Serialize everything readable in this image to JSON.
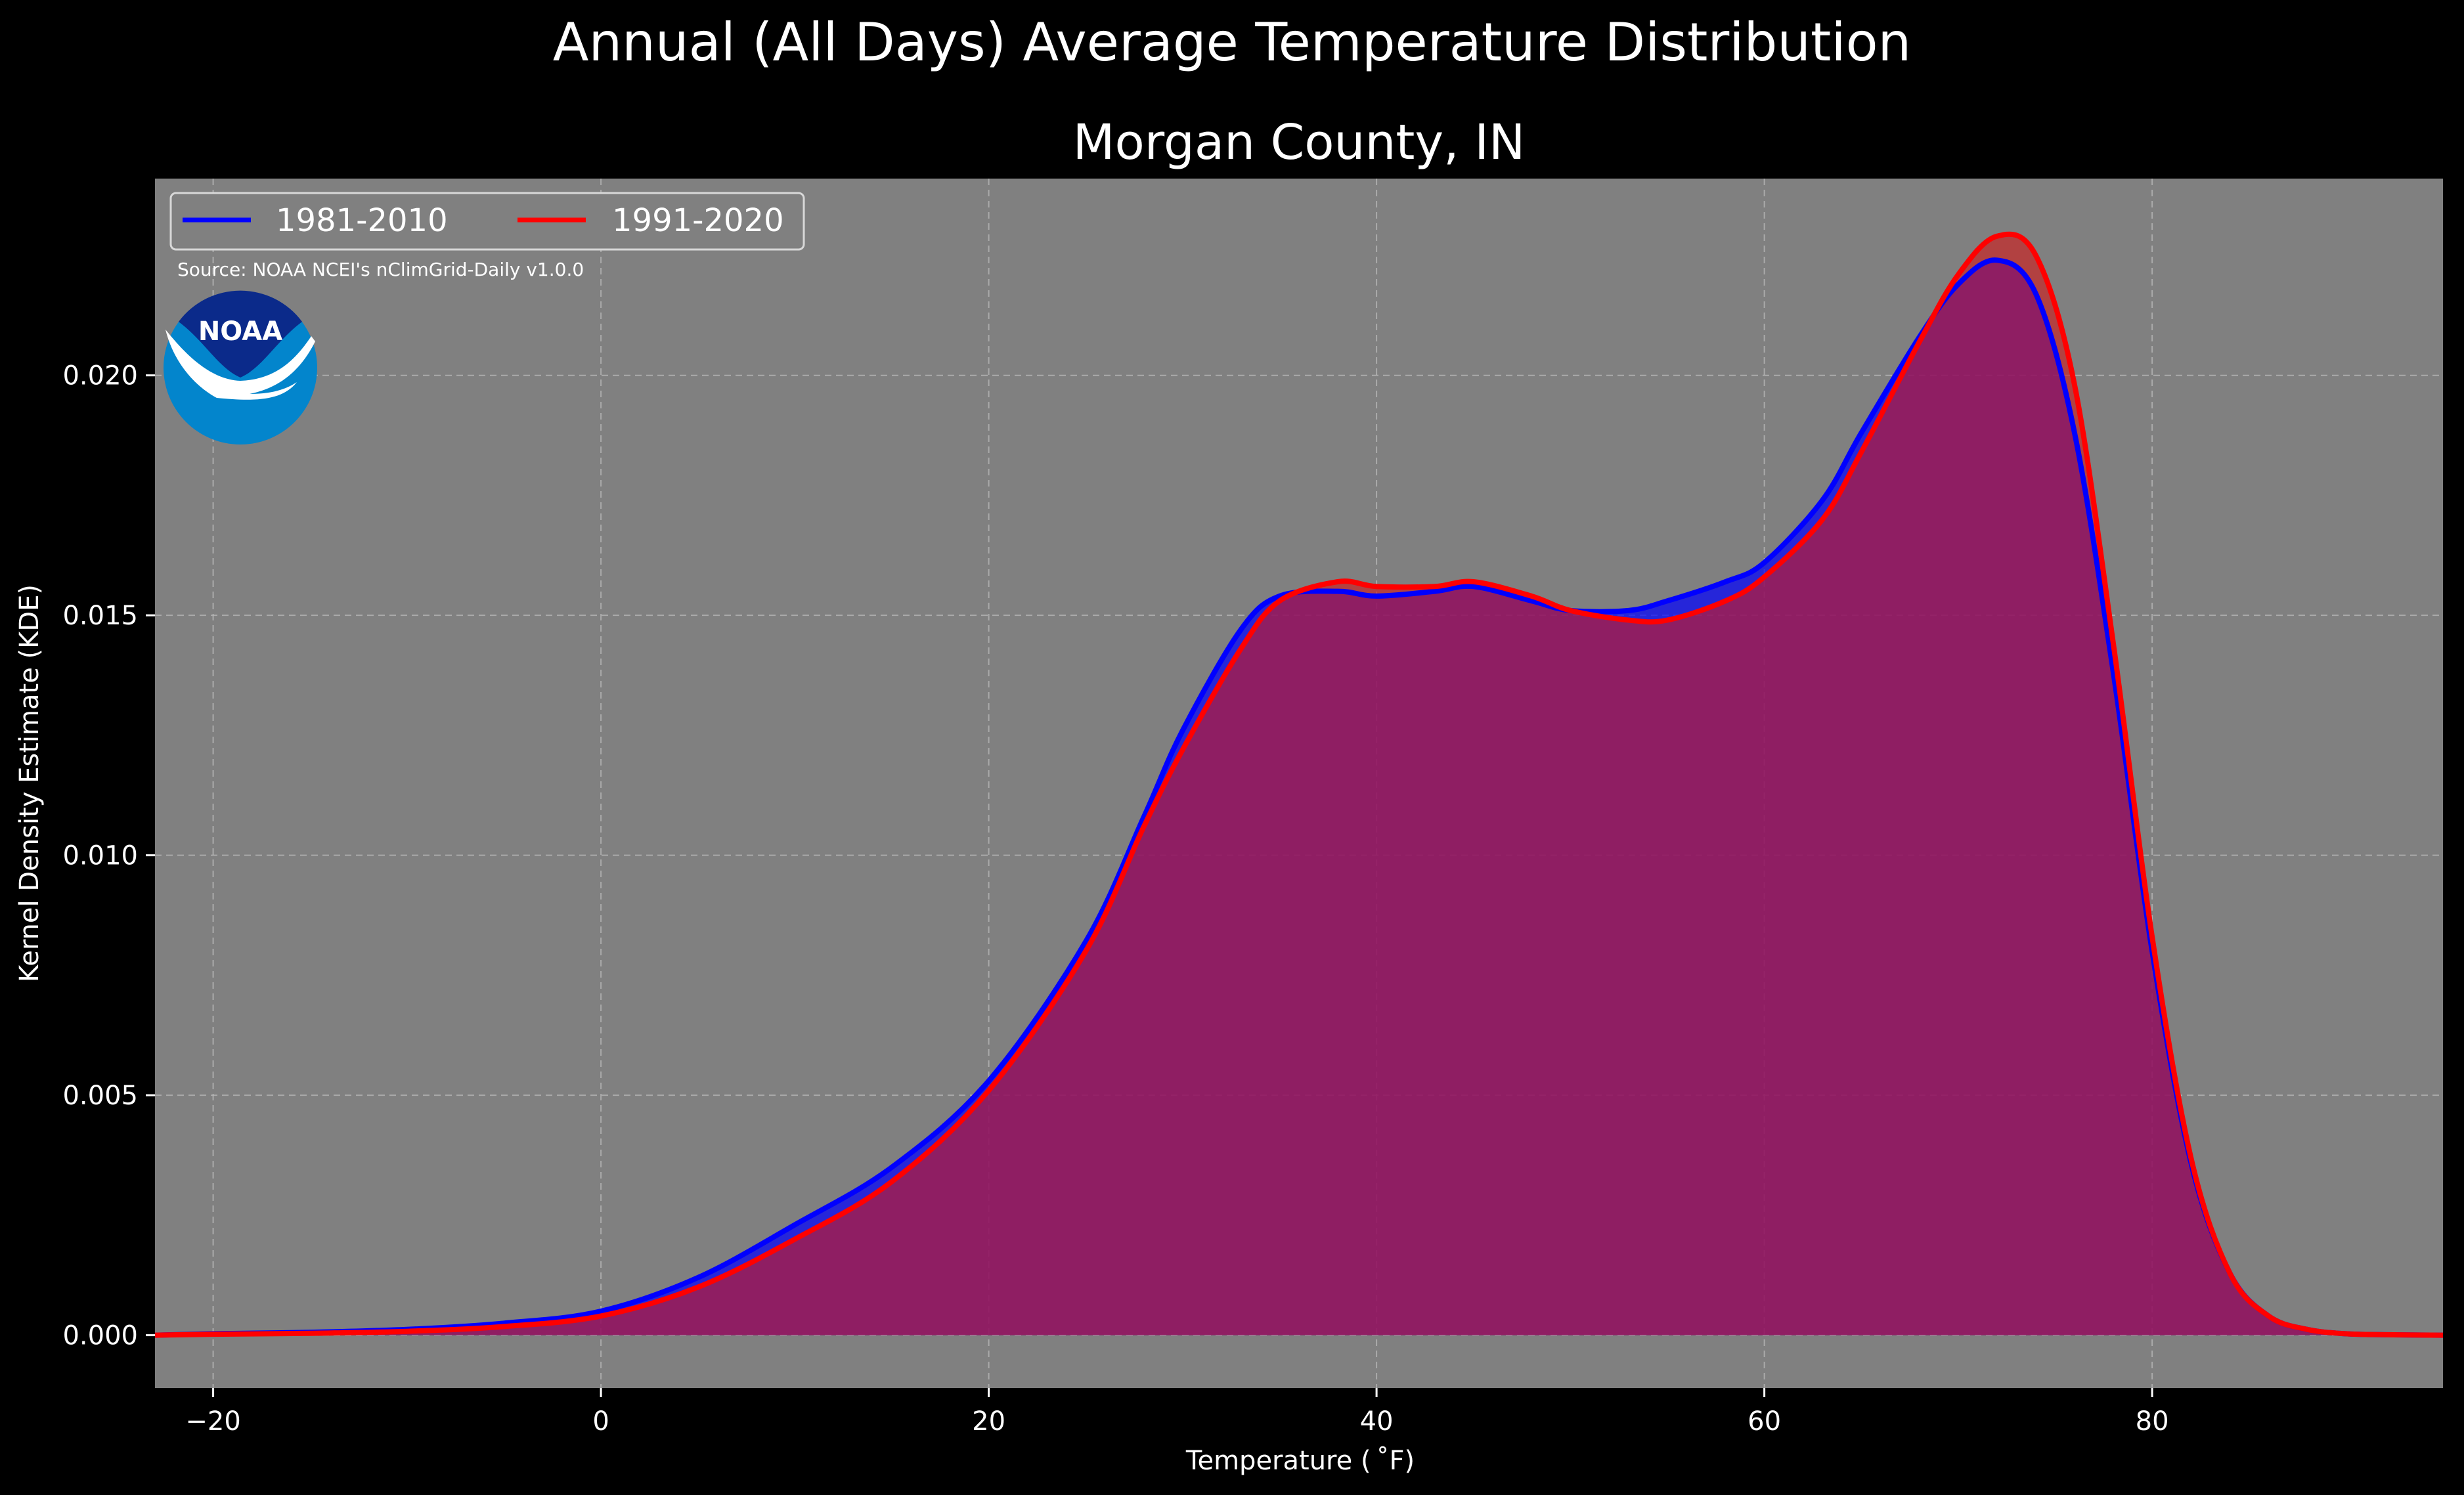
{
  "chart_data": {
    "type": "area",
    "title": "Annual (All Days) Average Temperature Distribution",
    "subtitle": "Morgan County, IN",
    "xlabel": "Temperature ( ˚F)",
    "ylabel": "Kernel Density Estimate (KDE)",
    "xlim": [
      -23,
      95
    ],
    "ylim": [
      -0.0011,
      0.0241
    ],
    "x_ticks": [
      -20,
      0,
      20,
      40,
      60,
      80
    ],
    "x_tick_labels": [
      "−20",
      "0",
      "20",
      "40",
      "60",
      "80"
    ],
    "y_ticks": [
      0.0,
      0.005,
      0.01,
      0.015,
      0.02
    ],
    "y_tick_labels": [
      "0.000",
      "0.005",
      "0.010",
      "0.015",
      "0.020"
    ],
    "grid": true,
    "legend_placement": "upper-left",
    "source": "Source: NOAA NCEI's nClimGrid-Daily v1.0.0",
    "logo_text": "NOAA",
    "x": [
      -23,
      -20,
      -15,
      -10,
      -5,
      0,
      5,
      10,
      15,
      20,
      25,
      28,
      30,
      33,
      35,
      38,
      40,
      43,
      45,
      48,
      50,
      53,
      55,
      58,
      60,
      63,
      65,
      68,
      70,
      72,
      74,
      76,
      78,
      80,
      82,
      84,
      86,
      88,
      90,
      92,
      95
    ],
    "series": [
      {
        "name": "1981-2010",
        "color": "#0000ff",
        "fill": "#0000ff",
        "values": [
          0.0,
          3e-05,
          6e-05,
          0.00012,
          0.00025,
          0.0005,
          0.0012,
          0.0023,
          0.0035,
          0.0053,
          0.0082,
          0.0108,
          0.0126,
          0.0147,
          0.0154,
          0.0155,
          0.0154,
          0.0155,
          0.0156,
          0.0153,
          0.0151,
          0.0151,
          0.0153,
          0.0157,
          0.0161,
          0.0174,
          0.0188,
          0.0208,
          0.0219,
          0.0224,
          0.0217,
          0.0188,
          0.0138,
          0.008,
          0.0036,
          0.0013,
          0.0004,
          0.00012,
          3e-05,
          1e-05,
          0.0
        ]
      },
      {
        "name": "1991-2020",
        "color": "#ff0000",
        "fill": "#d01a1a",
        "values": [
          0.0,
          2e-05,
          4e-05,
          8e-05,
          0.00018,
          0.0004,
          0.001,
          0.002,
          0.0032,
          0.0051,
          0.008,
          0.0106,
          0.0122,
          0.0143,
          0.0153,
          0.0157,
          0.0156,
          0.0156,
          0.0157,
          0.0154,
          0.0151,
          0.0149,
          0.0149,
          0.0153,
          0.0158,
          0.017,
          0.0184,
          0.0207,
          0.0221,
          0.0229,
          0.0225,
          0.0198,
          0.0144,
          0.0083,
          0.0037,
          0.0013,
          0.0004,
          0.00012,
          3e-05,
          1e-05,
          0.0
        ]
      }
    ]
  }
}
